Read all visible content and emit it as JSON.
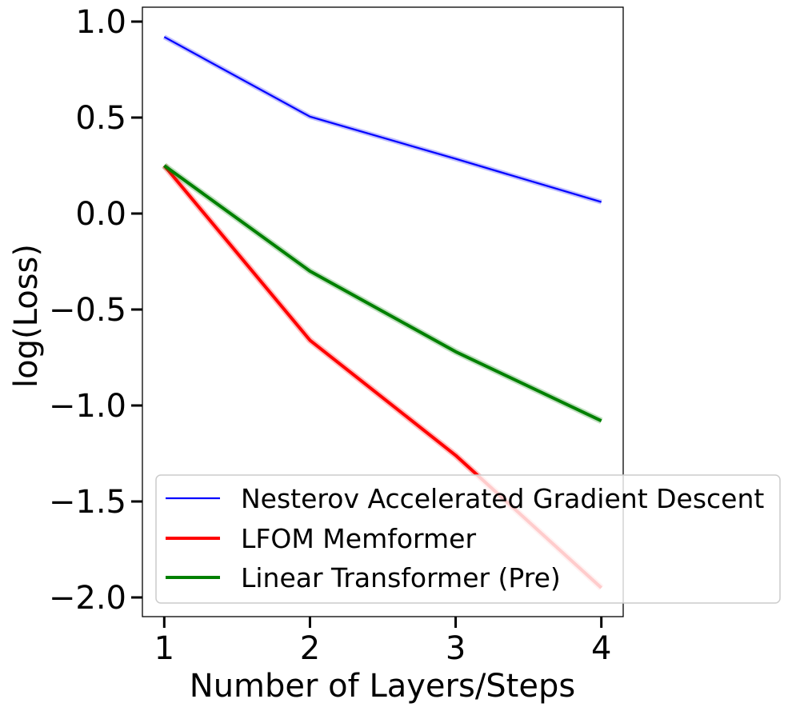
{
  "chart_data": {
    "type": "line",
    "xlabel": "Number of Layers/Steps",
    "ylabel": "log(Loss)",
    "x": [
      1,
      2,
      3,
      4
    ],
    "xlim": [
      0.85,
      4.15
    ],
    "ylim": [
      -2.1,
      1.075
    ],
    "xticks": [
      1,
      2,
      3,
      4
    ],
    "xtick_labels": [
      "1",
      "2",
      "3",
      "4"
    ],
    "yticks": [
      1.0,
      0.5,
      0.0,
      -0.5,
      -1.0,
      -1.5,
      -2.0
    ],
    "ytick_labels": [
      "1.0",
      "0.5",
      "0.0",
      "−0.5",
      "−1.0",
      "−1.5",
      "−2.0"
    ],
    "grid": false,
    "legend_position": "lower-right",
    "series": [
      {
        "name": "Nesterov Accelerated Gradient Descent",
        "color": "#0000ff",
        "values": [
          0.92,
          0.505,
          0.285,
          0.06
        ]
      },
      {
        "name": "LFOM Memformer",
        "color": "#ff0000",
        "values": [
          0.25,
          -0.66,
          -1.26,
          -1.95
        ]
      },
      {
        "name": "Linear Transformer (Pre)",
        "color": "#008000",
        "values": [
          0.25,
          -0.3,
          -0.72,
          -1.08
        ]
      }
    ]
  }
}
